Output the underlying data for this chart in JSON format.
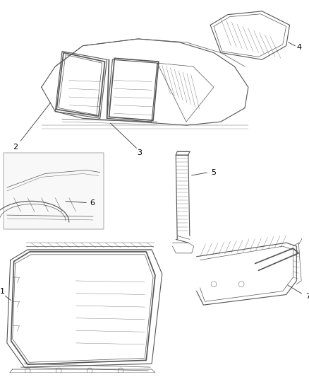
{
  "background_color": "#ffffff",
  "line_color": "#555555",
  "label_color": "#000000",
  "fig_width": 4.38,
  "fig_height": 5.33,
  "dpi": 100
}
